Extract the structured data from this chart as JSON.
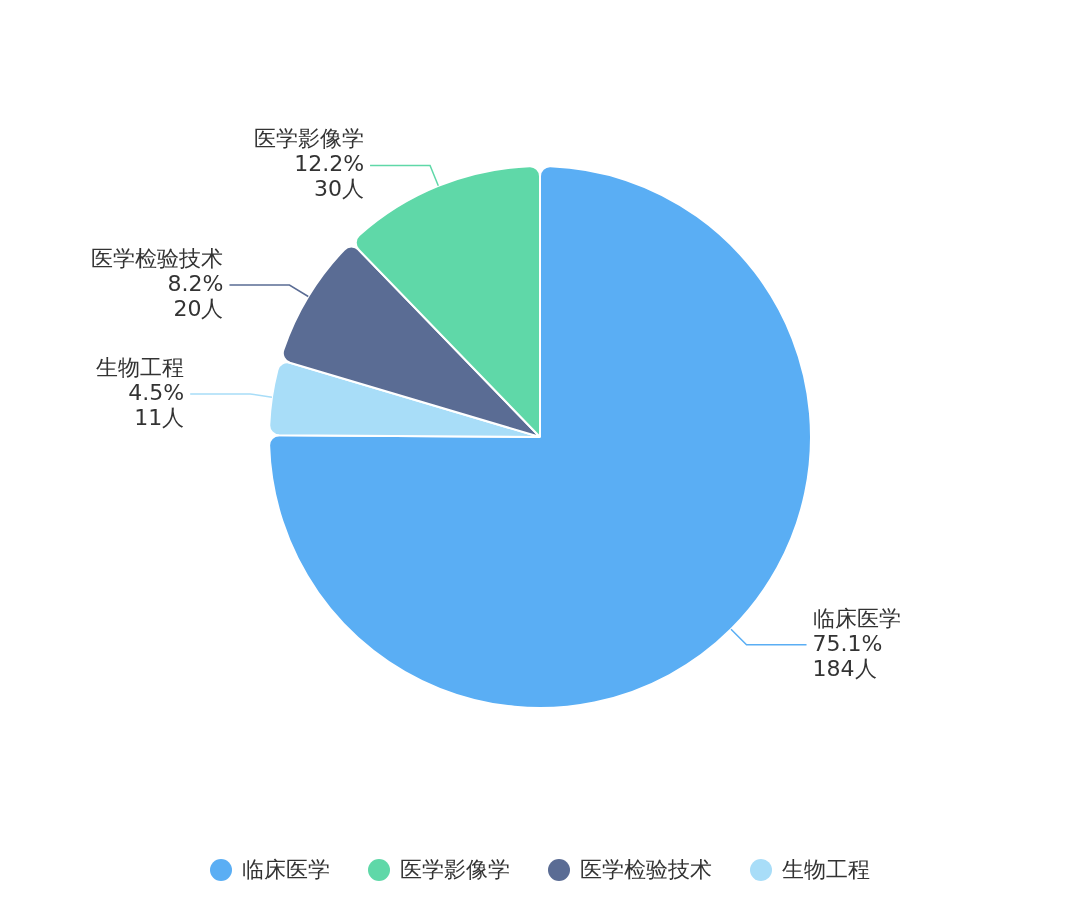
{
  "chart_data": {
    "type": "pie",
    "categories": [
      "临床医学",
      "医学影像学",
      "医学检验技术",
      "生物工程"
    ],
    "values": [
      184,
      30,
      20,
      11
    ],
    "colors": [
      "#5aaef4",
      "#5fd8a8",
      "#5a6c94",
      "#a8ddf8"
    ],
    "value_labels": [
      "75.1%\n184人",
      "12.2%\n30人",
      "8.2%\n20人",
      "4.5%\n11人"
    ],
    "legend": "bottom"
  }
}
